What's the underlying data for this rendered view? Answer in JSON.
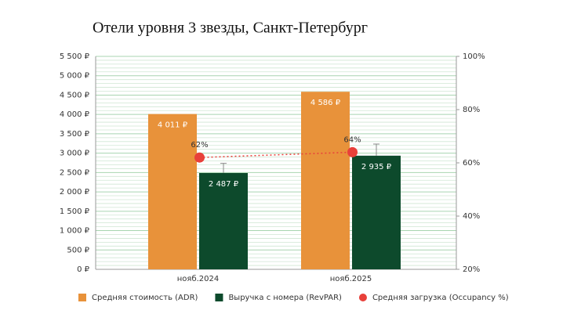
{
  "chart_data": {
    "type": "bar",
    "title": "Отели уровня 3 звезды, Санкт-Петербург",
    "categories": [
      "нояб.2024",
      "нояб.2025"
    ],
    "series": [
      {
        "name": "Средняя стоимость (ADR)",
        "type": "bar",
        "color": "#e8923a",
        "values": [
          4011,
          4586
        ],
        "value_labels": [
          "4 011 ₽",
          "4 586 ₽"
        ]
      },
      {
        "name": "Выручка с номера (RevPAR)",
        "type": "bar",
        "color": "#0d4a2c",
        "values": [
          2487,
          2935
        ],
        "value_labels": [
          "2 487 ₽",
          "2 935 ₽"
        ],
        "errors": [
          250,
          300
        ]
      },
      {
        "name": "Средняя загрузка (Occupancy %)",
        "type": "line",
        "axis": "y2",
        "color": "#e8403a",
        "values": [
          62,
          64
        ],
        "value_labels": [
          "62%",
          "64%"
        ]
      }
    ],
    "ylim": [
      0,
      5500
    ],
    "yticks": [
      {
        "value": 0,
        "label": "0 ₽"
      },
      {
        "value": 500,
        "label": "500 ₽"
      },
      {
        "value": 1000,
        "label": "1 000 ₽"
      },
      {
        "value": 1500,
        "label": "1 500 ₽"
      },
      {
        "value": 2000,
        "label": "2 000 ₽"
      },
      {
        "value": 2500,
        "label": "2 500 ₽"
      },
      {
        "value": 3000,
        "label": "3 000 ₽"
      },
      {
        "value": 3500,
        "label": "3 500 ₽"
      },
      {
        "value": 4000,
        "label": "4 000 ₽"
      },
      {
        "value": 4500,
        "label": "4 500 ₽"
      },
      {
        "value": 5000,
        "label": "5 000 ₽"
      },
      {
        "value": 5500,
        "label": "5 500 ₽"
      }
    ],
    "y2lim": [
      20,
      100
    ],
    "y2ticks": [
      {
        "value": 20,
        "label": "20%"
      },
      {
        "value": 40,
        "label": "40%"
      },
      {
        "value": 60,
        "label": "60%"
      },
      {
        "value": 80,
        "label": "80%"
      },
      {
        "value": 100,
        "label": "100%"
      }
    ],
    "grid": true,
    "legend": "bottom"
  }
}
